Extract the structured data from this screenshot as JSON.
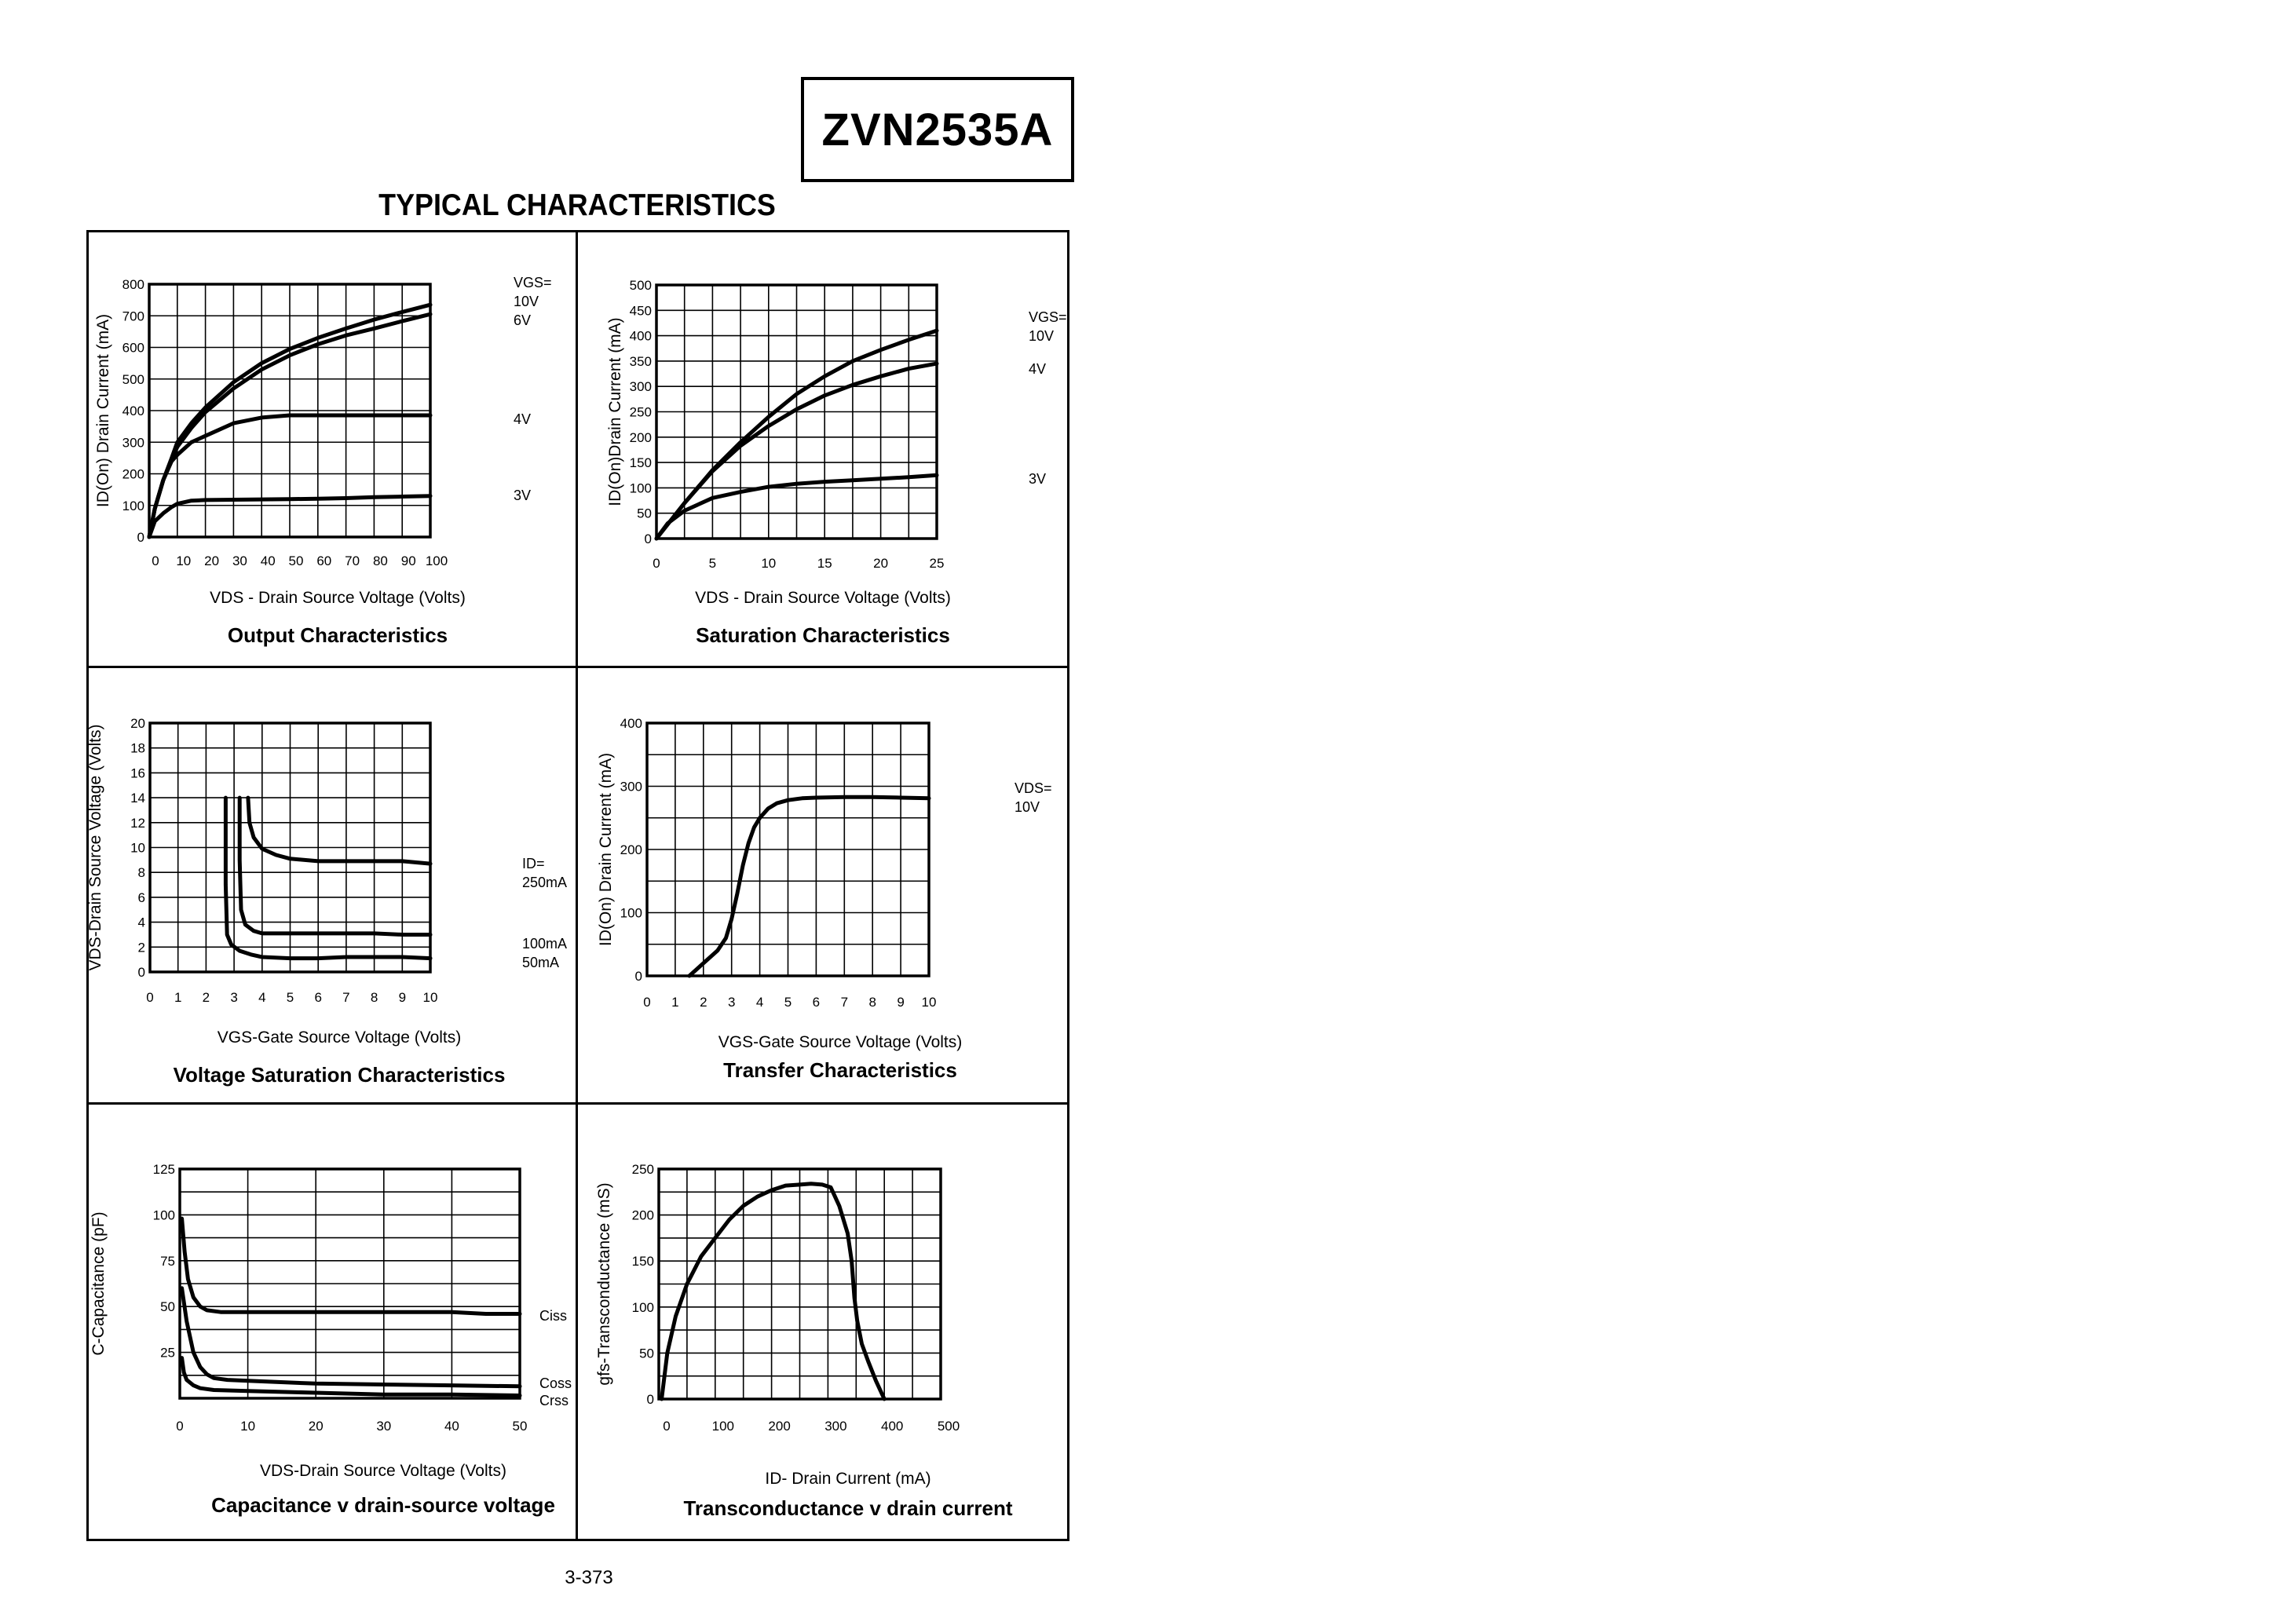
{
  "header": {
    "part_number": "ZVN2535A",
    "section_title": "TYPICAL CHARACTERISTICS"
  },
  "footer": {
    "page_number": "3-373"
  },
  "chart_data": [
    {
      "id": "output",
      "type": "line",
      "title": "Output Characteristics",
      "xlabel": "VDS - Drain Source Voltage (Volts)",
      "ylabel": "ID(On) Drain Current (mA)",
      "xlim": [
        0,
        100
      ],
      "ylim": [
        0,
        800
      ],
      "xticks": [
        0,
        10,
        20,
        30,
        40,
        50,
        60,
        70,
        80,
        90,
        100
      ],
      "yticks": [
        0,
        100,
        200,
        300,
        400,
        500,
        600,
        700,
        800
      ],
      "xgrid": 10,
      "ygrid": 8,
      "grid": true,
      "legend_title": "VGS=",
      "series": [
        {
          "name": "10V",
          "x": [
            0,
            2,
            5,
            8,
            10,
            15,
            20,
            30,
            40,
            50,
            60,
            70,
            80,
            90,
            100
          ],
          "y": [
            0,
            90,
            180,
            250,
            300,
            360,
            410,
            490,
            550,
            595,
            630,
            660,
            688,
            712,
            735
          ]
        },
        {
          "name": "6V",
          "x": [
            0,
            2,
            5,
            8,
            10,
            15,
            20,
            30,
            40,
            50,
            60,
            70,
            80,
            90,
            100
          ],
          "y": [
            0,
            90,
            180,
            245,
            285,
            345,
            395,
            470,
            530,
            575,
            610,
            638,
            660,
            683,
            705
          ]
        },
        {
          "name": "4V",
          "x": [
            0,
            2,
            5,
            8,
            10,
            15,
            20,
            30,
            40,
            50,
            60,
            70,
            80,
            90,
            100
          ],
          "y": [
            0,
            90,
            180,
            240,
            260,
            300,
            320,
            360,
            378,
            385,
            385,
            385,
            385,
            385,
            385
          ]
        },
        {
          "name": "3V",
          "x": [
            0,
            2,
            5,
            8,
            10,
            15,
            20,
            30,
            40,
            50,
            60,
            70,
            80,
            90,
            100
          ],
          "y": [
            0,
            50,
            75,
            95,
            105,
            115,
            117,
            118,
            119,
            120,
            121,
            123,
            126,
            128,
            130
          ]
        }
      ]
    },
    {
      "id": "saturation",
      "type": "line",
      "title": "Saturation Characteristics",
      "xlabel": "VDS - Drain Source Voltage (Volts)",
      "ylabel": "ID(On)Drain Current (mA)",
      "xlim": [
        0,
        25
      ],
      "ylim": [
        0,
        500
      ],
      "xticks": [
        0,
        5,
        10,
        15,
        20,
        25
      ],
      "yticks": [
        0,
        50,
        100,
        150,
        200,
        250,
        300,
        350,
        400,
        450,
        500
      ],
      "xgrid": 10,
      "ygrid": 10,
      "grid": true,
      "legend_title": "VGS=",
      "series": [
        {
          "name": "10V",
          "x": [
            0,
            2.5,
            5,
            7.5,
            10,
            12.5,
            15,
            17.5,
            20,
            22.5,
            25
          ],
          "y": [
            0,
            70,
            135,
            190,
            240,
            285,
            320,
            350,
            372,
            392,
            410
          ]
        },
        {
          "name": "4V",
          "x": [
            0,
            2.5,
            5,
            7.5,
            10,
            12.5,
            15,
            17.5,
            20,
            22.5,
            25
          ],
          "y": [
            0,
            70,
            133,
            183,
            222,
            255,
            282,
            303,
            320,
            335,
            345
          ]
        },
        {
          "name": "3V",
          "x": [
            0,
            1,
            2.5,
            5,
            7.5,
            10,
            12.5,
            15,
            17.5,
            20,
            22.5,
            25
          ],
          "y": [
            0,
            30,
            55,
            80,
            92,
            102,
            108,
            112,
            115,
            118,
            121,
            125
          ]
        }
      ]
    },
    {
      "id": "voltage_saturation",
      "type": "line",
      "title": "Voltage Saturation Characteristics",
      "xlabel": "VGS-Gate Source Voltage  (Volts)",
      "ylabel": "VDS-Drain Source Voltage (Volts)",
      "xlim": [
        0,
        10
      ],
      "ylim": [
        0,
        20
      ],
      "xticks": [
        0,
        1,
        2,
        3,
        4,
        5,
        6,
        7,
        8,
        9,
        10
      ],
      "yticks": [
        0,
        2,
        4,
        6,
        8,
        10,
        12,
        14,
        16,
        18,
        20
      ],
      "xgrid": 10,
      "ygrid": 10,
      "grid": true,
      "legend_title": "ID=",
      "series": [
        {
          "name": "250mA",
          "x": [
            3.5,
            3.55,
            3.7,
            4,
            4.5,
            5,
            6,
            7,
            8,
            9,
            10
          ],
          "y": [
            14,
            12,
            10.8,
            9.9,
            9.4,
            9.1,
            8.9,
            8.9,
            8.9,
            8.9,
            8.7
          ]
        },
        {
          "name": "100mA",
          "x": [
            3.2,
            3.2,
            3.25,
            3.4,
            3.7,
            4,
            5,
            6,
            7,
            8,
            9,
            10
          ],
          "y": [
            14,
            9,
            5,
            3.8,
            3.3,
            3.1,
            3.1,
            3.1,
            3.1,
            3.1,
            3.0,
            3.0
          ]
        },
        {
          "name": "50mA",
          "x": [
            2.7,
            2.7,
            2.75,
            2.9,
            3.2,
            3.6,
            4,
            5,
            6,
            7,
            8,
            9,
            10
          ],
          "y": [
            14,
            7,
            3.0,
            2.2,
            1.7,
            1.4,
            1.2,
            1.1,
            1.1,
            1.2,
            1.2,
            1.2,
            1.1
          ]
        }
      ]
    },
    {
      "id": "transfer",
      "type": "line",
      "title": "Transfer Characteristics",
      "xlabel": "VGS-Gate Source Voltage (Volts)",
      "ylabel": "ID(On) Drain Current  (mA)",
      "xlim": [
        0,
        10
      ],
      "ylim": [
        0,
        400
      ],
      "xticks": [
        0,
        1,
        2,
        3,
        4,
        5,
        6,
        7,
        8,
        9,
        10
      ],
      "yticks": [
        0,
        100,
        200,
        300,
        400
      ],
      "xgrid": 10,
      "ygrid": 8,
      "grid": true,
      "legend_title": "VDS=",
      "series": [
        {
          "name": "10V",
          "x": [
            1.5,
            2,
            2.5,
            2.8,
            3,
            3.2,
            3.4,
            3.6,
            3.8,
            4,
            4.3,
            4.6,
            5,
            5.5,
            6,
            7,
            8,
            9,
            10
          ],
          "y": [
            0,
            20,
            40,
            60,
            90,
            130,
            175,
            210,
            235,
            250,
            265,
            273,
            278,
            281,
            282,
            283,
            283,
            282,
            281
          ]
        }
      ]
    },
    {
      "id": "capacitance",
      "type": "line",
      "title": "Capacitance v drain-source voltage",
      "xlabel": "VDS-Drain Source Voltage (Volts)",
      "ylabel": "C-Capacitance (pF)",
      "xlim": [
        0,
        50
      ],
      "ylim": [
        0,
        125
      ],
      "xticks": [
        0,
        10,
        20,
        30,
        40,
        50
      ],
      "yticks": [
        25,
        50,
        75,
        100,
        125
      ],
      "xgrid": 5,
      "ygrid": 10,
      "grid": true,
      "series": [
        {
          "name": "Ciss",
          "x": [
            0.3,
            0.7,
            1.2,
            2,
            3,
            4,
            6,
            10,
            20,
            30,
            40,
            45,
            50
          ],
          "y": [
            98,
            80,
            65,
            55,
            50,
            48,
            47,
            47,
            47,
            47,
            47,
            46,
            46
          ]
        },
        {
          "name": "Coss",
          "x": [
            0.3,
            1,
            2,
            3,
            4,
            5,
            7,
            10,
            20,
            30,
            40,
            50
          ],
          "y": [
            60,
            42,
            25,
            17,
            13,
            11,
            10,
            9.5,
            8,
            7.5,
            7,
            6.5
          ]
        },
        {
          "name": "Crss",
          "x": [
            0.3,
            0.6,
            1,
            2,
            3,
            5,
            10,
            20,
            30,
            40,
            50
          ],
          "y": [
            22,
            14,
            10,
            7,
            5.5,
            4.5,
            4,
            3,
            2,
            2,
            1.5
          ]
        }
      ]
    },
    {
      "id": "transconductance",
      "type": "line",
      "title": "Transconductance v drain current",
      "xlabel": "ID- Drain Current (mA)",
      "ylabel": "gfs-Transconductance (mS)",
      "xlim": [
        0,
        500
      ],
      "ylim": [
        0,
        250
      ],
      "xticks": [
        0,
        100,
        200,
        300,
        400,
        500
      ],
      "yticks": [
        0,
        50,
        100,
        150,
        200,
        250
      ],
      "xgrid": 10,
      "ygrid": 10,
      "grid": true,
      "series": [
        {
          "name": "gfs",
          "x": [
            5,
            15,
            30,
            50,
            75,
            100,
            125,
            150,
            175,
            200,
            225,
            250,
            270,
            290,
            305,
            320,
            335,
            342,
            347,
            352,
            360,
            372,
            385,
            400
          ],
          "y": [
            0,
            50,
            90,
            125,
            155,
            175,
            195,
            210,
            220,
            227,
            232,
            233,
            234,
            233,
            230,
            210,
            180,
            150,
            110,
            85,
            60,
            40,
            20,
            0
          ]
        }
      ]
    }
  ],
  "series_labels": {
    "output": {
      "legend": "VGS=",
      "labels": [
        "10V",
        "6V",
        "4V",
        "3V"
      ]
    },
    "saturation": {
      "legend": "VGS=",
      "labels": [
        "10V",
        "4V",
        "3V"
      ]
    },
    "voltage_saturation": {
      "legend": "ID=",
      "labels": [
        "250mA",
        "100mA",
        "50mA"
      ]
    },
    "transfer": {
      "legend": "VDS=",
      "labels": [
        "10V"
      ]
    },
    "capacitance": {
      "labels": [
        "Ciss",
        "Coss",
        "Crss"
      ]
    }
  }
}
